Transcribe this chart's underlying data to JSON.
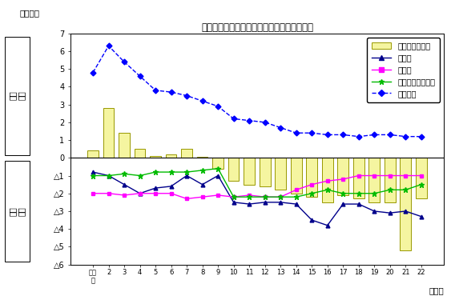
{
  "title": "主な移動理由別転入転出差の推移（日本人）",
  "ylabel_unit": "（千人）",
  "xlabel_unit": "（年）",
  "x_labels": [
    "平成\n元",
    "2",
    "3",
    "4",
    "5",
    "6",
    "7",
    "8",
    "9",
    "10",
    "11",
    "12",
    "13",
    "14",
    "15",
    "16",
    "17",
    "18",
    "19",
    "20",
    "21",
    "22"
  ],
  "bar_values": [
    0.4,
    2.8,
    1.4,
    0.5,
    0.1,
    0.2,
    0.5,
    0.05,
    -0.6,
    -1.3,
    -1.5,
    -1.6,
    -1.8,
    -2.0,
    -2.2,
    -2.5,
    -2.1,
    -2.3,
    -2.5,
    -2.5,
    -5.2,
    -2.3
  ],
  "shokugyou": [
    -0.8,
    -1.0,
    -1.5,
    -2.0,
    -1.7,
    -1.6,
    -1.0,
    -1.5,
    -1.0,
    -2.5,
    -2.6,
    -2.5,
    -2.5,
    -2.6,
    -3.5,
    -3.8,
    -2.6,
    -2.6,
    -3.0,
    -3.1,
    -3.0,
    -3.3
  ],
  "gakugyo": [
    -2.0,
    -2.0,
    -2.1,
    -2.0,
    -2.0,
    -2.0,
    -2.3,
    -2.2,
    -2.1,
    -2.2,
    -2.1,
    -2.2,
    -2.2,
    -1.8,
    -1.5,
    -1.3,
    -1.2,
    -1.0,
    -1.0,
    -1.0,
    -1.0,
    -1.0
  ],
  "kekkon": [
    -1.0,
    -1.0,
    -0.9,
    -1.0,
    -0.8,
    -0.8,
    -0.8,
    -0.7,
    -0.6,
    -2.2,
    -2.2,
    -2.2,
    -2.2,
    -2.2,
    -2.0,
    -1.8,
    -2.0,
    -2.0,
    -2.0,
    -1.8,
    -1.8,
    -1.5
  ],
  "jyutaku": [
    4.8,
    6.3,
    5.4,
    4.6,
    3.8,
    3.7,
    3.5,
    3.2,
    2.9,
    2.2,
    2.1,
    2.0,
    1.7,
    1.4,
    1.4,
    1.3,
    1.3,
    1.2,
    1.3,
    1.3,
    1.2,
    1.2
  ],
  "bar_color": "#F5F5A0",
  "bar_edge_color": "#999900",
  "shokugyou_color": "#00008B",
  "gakugyo_color": "#FF00FF",
  "kekkon_color": "#00BB00",
  "jyutaku_color": "#0000FF",
  "ylim": [
    -6,
    7
  ],
  "yticks_pos": [
    7,
    6,
    5,
    4,
    3,
    2,
    1,
    0
  ],
  "yticks_neg": [
    -1,
    -2,
    -3,
    -4,
    -5,
    -6
  ],
  "background_color": "#FFFFFF",
  "left_label_nyuu": "転入\n超過",
  "left_label_shutsu": "転出\n超過",
  "legend_labels": [
    "合計（日本人）",
    "職業上",
    "学業上",
    "結婚・離婚・縁組",
    "住宅事情"
  ]
}
